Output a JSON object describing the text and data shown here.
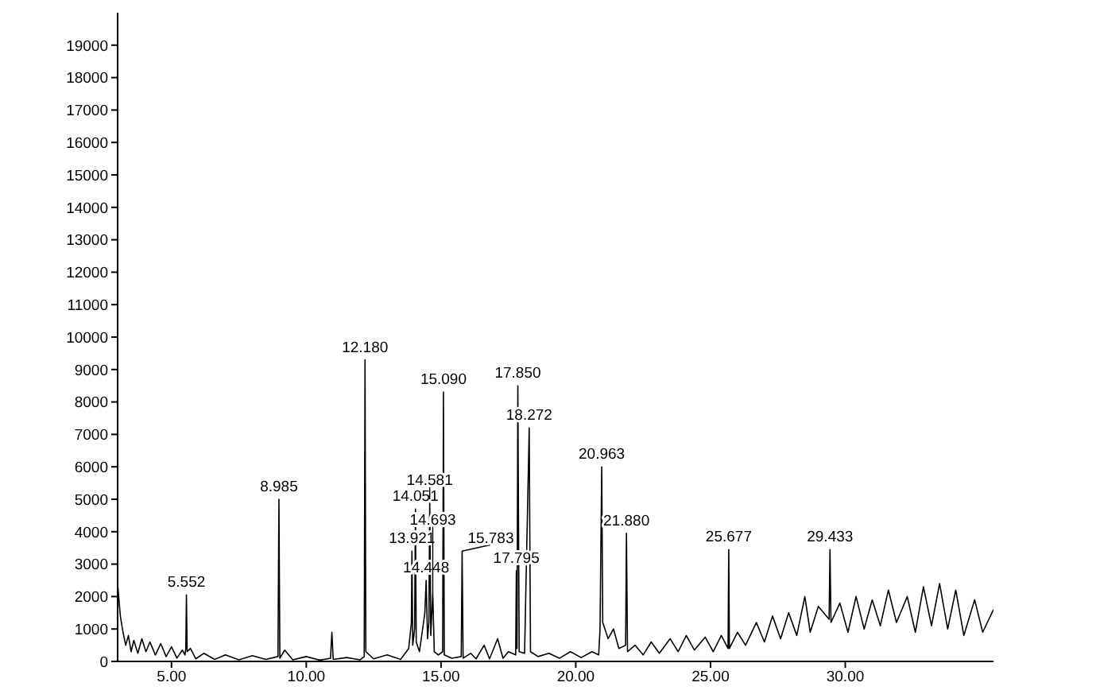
{
  "chart_data": {
    "type": "line",
    "x": [
      3.0,
      3.1,
      3.2,
      3.3,
      3.4,
      3.5,
      3.6,
      3.75,
      3.9,
      4.05,
      4.2,
      4.4,
      4.6,
      4.8,
      5.0,
      5.2,
      5.4,
      5.5,
      5.53,
      5.552,
      5.58,
      5.7,
      5.9,
      6.2,
      6.6,
      7.0,
      7.5,
      8.0,
      8.5,
      8.95,
      8.985,
      9.02,
      9.2,
      9.5,
      10.0,
      10.5,
      10.9,
      10.95,
      11.0,
      11.5,
      12.0,
      12.15,
      12.18,
      12.21,
      12.5,
      13.0,
      13.5,
      13.8,
      13.9,
      13.921,
      13.95,
      14.02,
      14.051,
      14.08,
      14.2,
      14.4,
      14.448,
      14.5,
      14.55,
      14.581,
      14.62,
      14.693,
      14.75,
      14.9,
      15.06,
      15.09,
      15.12,
      15.4,
      15.75,
      15.783,
      15.82,
      16.1,
      16.3,
      16.6,
      16.8,
      17.1,
      17.3,
      17.5,
      17.77,
      17.795,
      17.82,
      17.85,
      17.9,
      18.1,
      18.272,
      18.32,
      18.6,
      19.0,
      19.4,
      19.8,
      20.2,
      20.6,
      20.85,
      20.9,
      20.963,
      21.0,
      21.2,
      21.4,
      21.6,
      21.85,
      21.88,
      21.92,
      22.2,
      22.5,
      22.8,
      23.1,
      23.5,
      23.8,
      24.1,
      24.4,
      24.8,
      25.1,
      25.4,
      25.65,
      25.677,
      25.7,
      26.0,
      26.3,
      26.7,
      27.0,
      27.3,
      27.6,
      27.9,
      28.2,
      28.5,
      28.7,
      29.0,
      29.4,
      29.433,
      29.47,
      29.8,
      30.1,
      30.4,
      30.7,
      31.0,
      31.3,
      31.6,
      31.9,
      32.3,
      32.6,
      32.9,
      33.2,
      33.5,
      33.8,
      34.1,
      34.4,
      34.8,
      35.1,
      35.5
    ],
    "series": [
      {
        "color": "#000000",
        "values": [
          2400,
          1400,
          900,
          500,
          800,
          300,
          650,
          250,
          700,
          300,
          600,
          200,
          550,
          150,
          450,
          100,
          350,
          200,
          400,
          2050,
          300,
          400,
          80,
          250,
          60,
          200,
          50,
          180,
          60,
          150,
          5000,
          100,
          350,
          50,
          150,
          40,
          100,
          900,
          60,
          120,
          50,
          150,
          9300,
          300,
          80,
          200,
          60,
          400,
          1200,
          3400,
          500,
          1000,
          4700,
          600,
          300,
          1500,
          2500,
          700,
          1200,
          5000,
          800,
          2100,
          300,
          200,
          300,
          8300,
          200,
          100,
          150,
          3400,
          100,
          250,
          80,
          500,
          80,
          700,
          100,
          300,
          200,
          2800,
          400,
          8500,
          300,
          250,
          7200,
          300,
          150,
          250,
          100,
          300,
          120,
          300,
          200,
          1000,
          6000,
          1200,
          700,
          1000,
          400,
          500,
          3950,
          300,
          500,
          200,
          600,
          250,
          700,
          300,
          800,
          350,
          750,
          300,
          800,
          400,
          3450,
          400,
          900,
          500,
          1200,
          600,
          1400,
          700,
          1500,
          800,
          2000,
          900,
          1700,
          1300,
          3450,
          1200,
          1800,
          900,
          2000,
          1000,
          1900,
          1100,
          2200,
          1200,
          2000,
          900,
          2300,
          1100,
          2400,
          1000,
          2200,
          800,
          1900,
          900,
          1600
        ]
      }
    ],
    "xlim": [
      3,
      35.5
    ],
    "xticks": [
      {
        "value": 5,
        "label": "5.00"
      },
      {
        "value": 10,
        "label": "10.00"
      },
      {
        "value": 15,
        "label": "15.00"
      },
      {
        "value": 20,
        "label": "20.00"
      },
      {
        "value": 25,
        "label": "25.00"
      },
      {
        "value": 30,
        "label": "30.00"
      }
    ],
    "ylim": [
      0,
      20000
    ],
    "yticks": [
      0,
      1000,
      2000,
      3000,
      4000,
      5000,
      6000,
      7000,
      8000,
      9000,
      10000,
      11000,
      12000,
      13000,
      14000,
      15000,
      16000,
      17000,
      18000,
      19000
    ],
    "grid": false,
    "legend": false,
    "marker": "none",
    "line_style": "solid",
    "annotations": [
      {
        "text": "5.552",
        "x": 5.552,
        "y": 2050
      },
      {
        "text": "8.985",
        "x": 8.985,
        "y": 5000
      },
      {
        "text": "12.180",
        "x": 12.18,
        "y": 9300
      },
      {
        "text": "13.921",
        "x": 13.921,
        "y": 3400
      },
      {
        "text": "14.051",
        "x": 14.051,
        "y": 4700
      },
      {
        "text": "14.448",
        "x": 14.448,
        "y": 2500
      },
      {
        "text": "14.581",
        "x": 14.581,
        "y": 5000
      },
      {
        "text": "14.693",
        "x": 14.693,
        "y": 2100
      },
      {
        "text": "15.090",
        "x": 15.09,
        "y": 8300
      },
      {
        "text": "15.783",
        "x": 15.783,
        "y": 3400
      },
      {
        "text": "17.795",
        "x": 17.795,
        "y": 2800
      },
      {
        "text": "17.850",
        "x": 17.85,
        "y": 8500
      },
      {
        "text": "18.272",
        "x": 18.272,
        "y": 7200
      },
      {
        "text": "20.963",
        "x": 20.963,
        "y": 6000
      },
      {
        "text": "21.880",
        "x": 21.88,
        "y": 3950
      },
      {
        "text": "25.677",
        "x": 25.677,
        "y": 3450
      },
      {
        "text": "29.433",
        "x": 29.433,
        "y": 3450
      }
    ]
  }
}
